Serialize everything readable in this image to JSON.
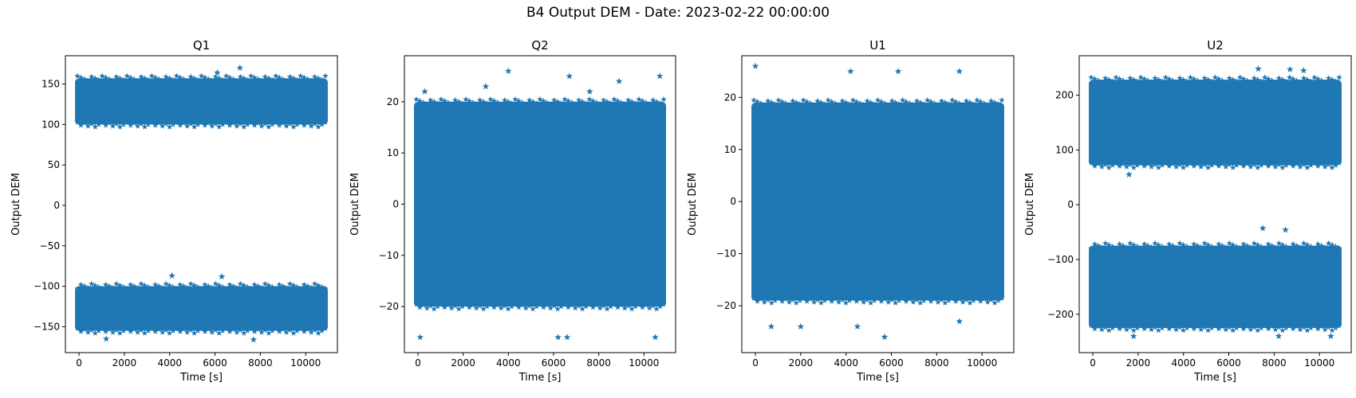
{
  "figure": {
    "title": "B4 Output DEM - Date: 2023-02-22 00:00:00",
    "marker_color": "#1f77b4",
    "marker": "star"
  },
  "chart_data": [
    {
      "type": "scatter",
      "title": "Q1",
      "xlabel": "Time [s]",
      "ylabel": "Output DEM",
      "xlim": [
        -600,
        11400
      ],
      "ylim": [
        -182,
        185
      ],
      "xticks": [
        0,
        2000,
        4000,
        6000,
        8000,
        10000
      ],
      "xtick_labels": [
        "0",
        "2000",
        "4000",
        "6000",
        "8000",
        "10000"
      ],
      "yticks": [
        -150,
        -100,
        -50,
        0,
        50,
        100,
        150
      ],
      "ytick_labels": [
        "−150",
        "−100",
        "−50",
        "0",
        "50",
        "100",
        "150"
      ],
      "x_range": [
        0,
        10800
      ],
      "bands": [
        {
          "name_hint": "upper",
          "y_core": [
            100,
            157
          ]
        },
        {
          "name_hint": "lower",
          "y_core": [
            -155,
            -100
          ]
        }
      ],
      "outliers": [
        [
          7100,
          170
        ],
        [
          6100,
          164
        ],
        [
          4100,
          -87
        ],
        [
          1200,
          -165
        ],
        [
          7700,
          -166
        ],
        [
          6300,
          -88
        ]
      ]
    },
    {
      "type": "scatter",
      "title": "Q2",
      "xlabel": "Time [s]",
      "ylabel": "Output DEM",
      "xlim": [
        -600,
        11400
      ],
      "ylim": [
        -29,
        29
      ],
      "xticks": [
        0,
        2000,
        4000,
        6000,
        8000,
        10000
      ],
      "xtick_labels": [
        "0",
        "2000",
        "4000",
        "6000",
        "8000",
        "10000"
      ],
      "yticks": [
        -20,
        -10,
        0,
        10,
        20
      ],
      "ytick_labels": [
        "−20",
        "−10",
        "0",
        "10",
        "20"
      ],
      "x_range": [
        0,
        10800
      ],
      "bands": [
        {
          "name_hint": "full",
          "y_core": [
            -20,
            20
          ]
        }
      ],
      "outliers": [
        [
          4000,
          26
        ],
        [
          6700,
          25
        ],
        [
          10700,
          25
        ],
        [
          8900,
          24
        ],
        [
          100,
          -26
        ],
        [
          6200,
          -26
        ],
        [
          6600,
          -26
        ],
        [
          10500,
          -26
        ],
        [
          300,
          22
        ],
        [
          3000,
          23
        ],
        [
          7600,
          22
        ]
      ]
    },
    {
      "type": "scatter",
      "title": "U1",
      "xlabel": "Time [s]",
      "ylabel": "Output DEM",
      "xlim": [
        -600,
        11400
      ],
      "ylim": [
        -29,
        28
      ],
      "xticks": [
        0,
        2000,
        4000,
        6000,
        8000,
        10000
      ],
      "xtick_labels": [
        "0",
        "2000",
        "4000",
        "6000",
        "8000",
        "10000"
      ],
      "yticks": [
        -20,
        -10,
        0,
        10,
        20
      ],
      "ytick_labels": [
        "−20",
        "−10",
        "0",
        "10",
        "20"
      ],
      "x_range": [
        0,
        10800
      ],
      "bands": [
        {
          "name_hint": "full",
          "y_core": [
            -19,
            19
          ]
        }
      ],
      "outliers": [
        [
          0,
          26
        ],
        [
          4200,
          25
        ],
        [
          6300,
          25
        ],
        [
          9000,
          25
        ],
        [
          5700,
          -26
        ],
        [
          700,
          -24
        ],
        [
          2000,
          -24
        ],
        [
          4500,
          -24
        ],
        [
          9000,
          -23
        ]
      ]
    },
    {
      "type": "scatter",
      "title": "U2",
      "xlabel": "Time [s]",
      "ylabel": "Output DEM",
      "xlim": [
        -600,
        11400
      ],
      "ylim": [
        -270,
        272
      ],
      "xticks": [
        0,
        2000,
        4000,
        6000,
        8000,
        10000
      ],
      "xtick_labels": [
        "0",
        "2000",
        "4000",
        "6000",
        "8000",
        "10000"
      ],
      "yticks": [
        -200,
        -100,
        0,
        100,
        200
      ],
      "ytick_labels": [
        "−200",
        "−100",
        "0",
        "100",
        "200"
      ],
      "x_range": [
        0,
        10800
      ],
      "bands": [
        {
          "name_hint": "upper",
          "y_core": [
            72,
            228
          ]
        },
        {
          "name_hint": "lower",
          "y_core": [
            -225,
            -75
          ]
        }
      ],
      "outliers": [
        [
          7300,
          248
        ],
        [
          8700,
          247
        ],
        [
          9300,
          245
        ],
        [
          1600,
          55
        ],
        [
          7500,
          -43
        ],
        [
          8500,
          -46
        ],
        [
          1800,
          -240
        ],
        [
          8200,
          -240
        ],
        [
          10500,
          -240
        ]
      ]
    }
  ]
}
